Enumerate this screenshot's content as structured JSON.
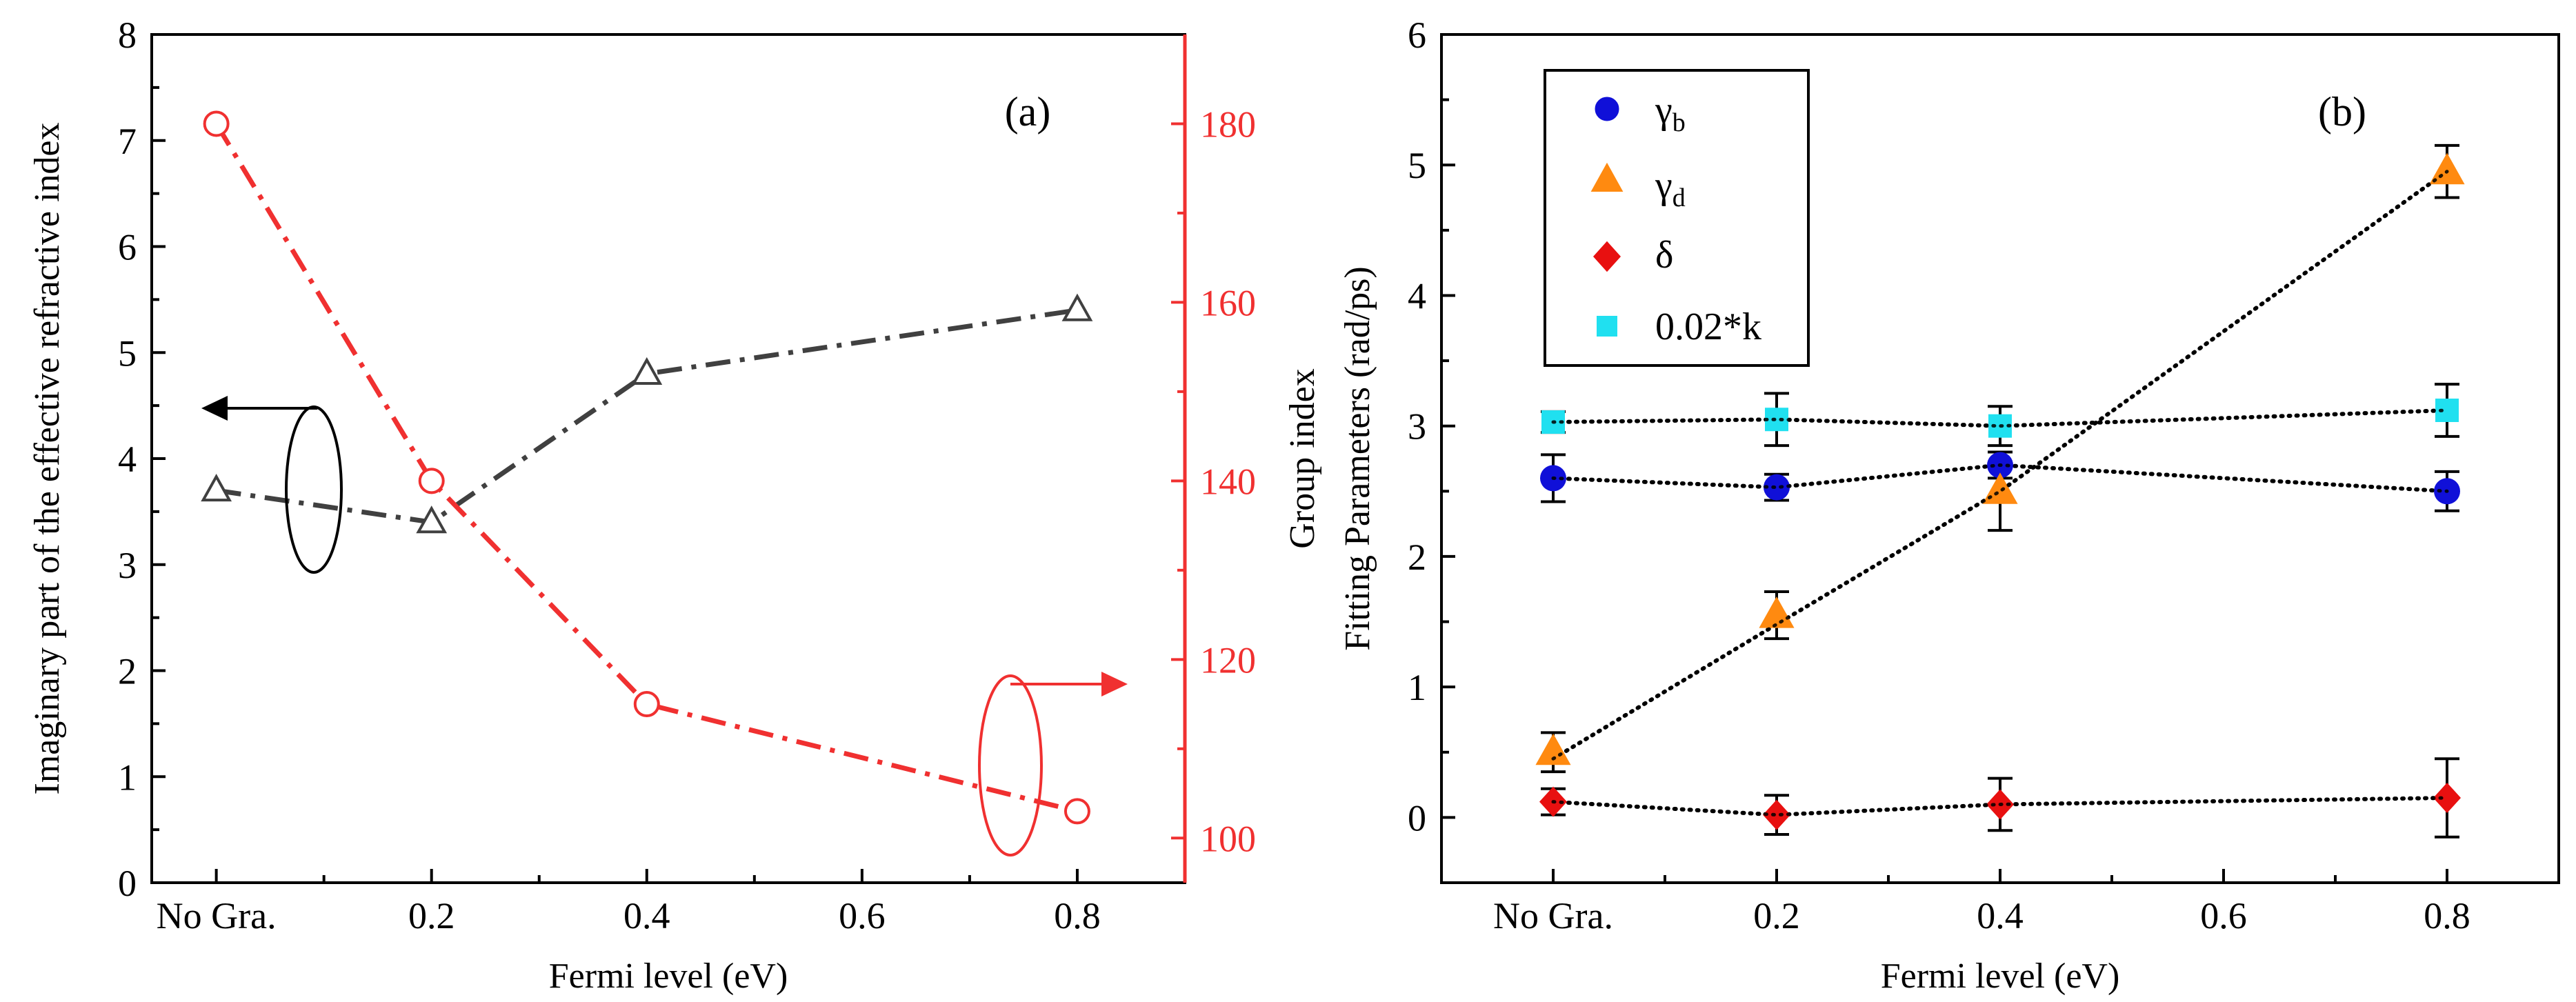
{
  "colors": {
    "axis": "#000000",
    "left_series": "#404040",
    "right_series": "#f03030",
    "right_axis": "#f03030",
    "gamma_b": "#1010d8",
    "gamma_d": "#ff8a10",
    "delta": "#e81010",
    "k": "#20e0f0",
    "fit_line": "#000000"
  },
  "chart_data": [
    {
      "panel": "(a)",
      "type": "line",
      "categories": [
        "No Gra.",
        "0.2",
        "0.4",
        "0.6",
        "0.8"
      ],
      "x": [
        0,
        0.2,
        0.4,
        0.8
      ],
      "xlim": [
        -0.06,
        0.9
      ],
      "xlabel": "Fermi level (eV)",
      "ylabel": "Imaginary part of the effective refractive index",
      "ylim": [
        0,
        8
      ],
      "yticks": [
        "0",
        "1",
        "2",
        "3",
        "4",
        "5",
        "6",
        "7",
        "8"
      ],
      "y2label": "Group index",
      "y2lim": [
        95,
        190
      ],
      "y2ticks": [
        "100",
        "120",
        "140",
        "160",
        "180"
      ],
      "series": [
        {
          "name": "Imaginary part of the effective refractive index",
          "axis": "left",
          "marker": "open-triangle",
          "linestyle": "dash-dot",
          "values": [
            3.7,
            3.4,
            4.8,
            5.4
          ]
        },
        {
          "name": "Group index",
          "axis": "right",
          "marker": "open-circle",
          "linestyle": "dash-dot",
          "values": [
            180,
            140,
            115,
            103
          ]
        }
      ],
      "annotations": [
        "left-axis arrow (black ellipse)",
        "right-axis arrow (red ellipse)"
      ]
    },
    {
      "panel": "(b)",
      "type": "scatter",
      "categories": [
        "No Gra.",
        "0.2",
        "0.4",
        "0.6",
        "0.8"
      ],
      "x": [
        0,
        0.2,
        0.4,
        0.8
      ],
      "xlim": [
        -0.1,
        0.9
      ],
      "xlabel": "Fermi level (eV)",
      "ylabel": "Fitting Parameters (rad/ps)",
      "ylim": [
        -0.5,
        6
      ],
      "yticks": [
        "0",
        "1",
        "2",
        "3",
        "4",
        "5",
        "6"
      ],
      "series": [
        {
          "name": "γb",
          "base": "γ",
          "sub": "b",
          "marker": "circle",
          "values": [
            2.6,
            2.53,
            2.7,
            2.5
          ],
          "errors": [
            0.18,
            0.1,
            0.1,
            0.15
          ],
          "fit": [
            2.6,
            2.53,
            2.7,
            2.5
          ]
        },
        {
          "name": "γd",
          "base": "γ",
          "sub": "d",
          "marker": "triangle",
          "values": [
            0.5,
            1.55,
            2.5,
            4.95
          ],
          "errors": [
            0.15,
            0.18,
            0.3,
            0.2
          ],
          "fit": [
            0.45,
            1.48,
            2.5,
            4.95
          ]
        },
        {
          "name": "δ",
          "base": "δ",
          "sub": "",
          "marker": "diamond",
          "values": [
            0.12,
            0.02,
            0.1,
            0.15
          ],
          "errors": [
            0.1,
            0.15,
            0.2,
            0.3
          ],
          "fit": [
            0.12,
            0.02,
            0.1,
            0.15
          ]
        },
        {
          "name": "0.02*k",
          "base": "0.02*k",
          "sub": "",
          "marker": "square",
          "values": [
            3.03,
            3.05,
            3.0,
            3.12
          ],
          "errors": [
            0.08,
            0.2,
            0.15,
            0.2
          ],
          "fit": [
            3.03,
            3.05,
            3.0,
            3.12
          ]
        }
      ],
      "legend_position": "top-left"
    }
  ]
}
